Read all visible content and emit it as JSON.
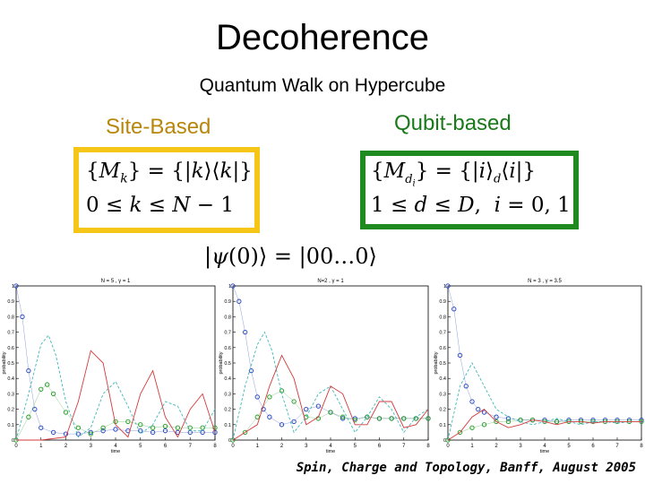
{
  "slide": {
    "title": "Decoherence",
    "subtitle": "Quantum Walk on Hypercube",
    "site_label": "Site-Based",
    "qubit_label": "Qubit-based",
    "site_formula_line1": "{M_k} = {|k⟩⟨k|}",
    "site_formula_line2": "0 ≤ k ≤ N − 1",
    "qubit_formula_line1": "{M_{d_i}} = {|i⟩_d⟨i|}",
    "qubit_formula_line2": "1 ≤ d ≤ D,  i = 0, 1",
    "initial_state": "|ψ(0)⟩ = |00…0⟩",
    "footer": "Spin, Charge and Topology, Banff, August 2005",
    "colors": {
      "site_box": "#f5c518",
      "qubit_box": "#1f8a1f",
      "site_label": "#b8860b",
      "qubit_label": "#1a7a1a"
    }
  },
  "chart_data": [
    {
      "type": "line",
      "title": "N = 5 , γ = 1",
      "xlabel": "time",
      "ylabel": "probability",
      "xlim": [
        0,
        8
      ],
      "ylim": [
        0,
        1
      ],
      "x_ticks": [
        "0",
        "1",
        "2",
        "3",
        "4",
        "5",
        "6",
        "7",
        "8"
      ],
      "y_ticks": [
        "0",
        "0.1",
        "0.2",
        "0.3",
        "0.4",
        "0.5",
        "0.6",
        "0.7",
        "0.8",
        "0.9",
        "1"
      ],
      "series": [
        {
          "color": "#1f3fbf",
          "style": "circles",
          "x": [
            0,
            0.25,
            0.5,
            0.75,
            1,
            1.5,
            2,
            2.5,
            3,
            3.5,
            4,
            4.5,
            5,
            5.5,
            6,
            6.5,
            7,
            7.5,
            8
          ],
          "y": [
            1,
            0.8,
            0.45,
            0.2,
            0.08,
            0.05,
            0.04,
            0.04,
            0.05,
            0.06,
            0.07,
            0.06,
            0.06,
            0.05,
            0.06,
            0.05,
            0.05,
            0.05,
            0.05
          ]
        },
        {
          "color": "#1f9a1f",
          "style": "circles",
          "x": [
            0,
            0.5,
            1,
            1.25,
            1.5,
            2,
            2.5,
            3,
            3.5,
            4,
            4.5,
            5,
            5.5,
            6,
            6.5,
            7,
            7.5,
            8
          ],
          "y": [
            0,
            0.15,
            0.33,
            0.36,
            0.3,
            0.18,
            0.08,
            0.04,
            0.08,
            0.12,
            0.12,
            0.1,
            0.08,
            0.09,
            0.08,
            0.08,
            0.08,
            0.08
          ]
        },
        {
          "color": "#3fb8b8",
          "style": "dash",
          "x": [
            0,
            0.5,
            1,
            1.3,
            1.6,
            2,
            2.5,
            3,
            3.5,
            4,
            4.5,
            5,
            5.5,
            6,
            6.5,
            7,
            7.5,
            8
          ],
          "y": [
            0,
            0.3,
            0.62,
            0.68,
            0.55,
            0.25,
            0.02,
            0.08,
            0.3,
            0.38,
            0.22,
            0.04,
            0.1,
            0.25,
            0.22,
            0.06,
            0.06,
            0.2
          ]
        },
        {
          "color": "#d43a3a",
          "style": "solid",
          "x": [
            0,
            1,
            2,
            2.5,
            3,
            3.5,
            4,
            4.5,
            5,
            5.5,
            6,
            6.5,
            7,
            7.5,
            8
          ],
          "y": [
            0,
            0,
            0.02,
            0.25,
            0.58,
            0.5,
            0.1,
            0.02,
            0.3,
            0.45,
            0.15,
            0.02,
            0.2,
            0.3,
            0.05
          ]
        }
      ]
    },
    {
      "type": "line",
      "title": "N=2 , γ = 1",
      "xlabel": "time",
      "ylabel": "probability",
      "xlim": [
        0,
        8
      ],
      "ylim": [
        0,
        1
      ],
      "x_ticks": [
        "0",
        "1",
        "2",
        "3",
        "4",
        "5",
        "6",
        "7",
        "8"
      ],
      "y_ticks": [
        "0",
        "0.1",
        "0.2",
        "0.3",
        "0.4",
        "0.5",
        "0.6",
        "0.7",
        "0.8",
        "0.9",
        "1"
      ],
      "series": [
        {
          "color": "#1f3fbf",
          "style": "circles",
          "x": [
            0,
            0.25,
            0.5,
            0.75,
            1,
            1.25,
            1.5,
            2,
            2.5,
            3,
            3.5,
            4,
            4.5,
            5,
            5.5,
            6,
            6.5,
            7,
            7.5,
            8
          ],
          "y": [
            1,
            0.9,
            0.7,
            0.45,
            0.28,
            0.2,
            0.15,
            0.1,
            0.12,
            0.2,
            0.22,
            0.18,
            0.14,
            0.14,
            0.15,
            0.14,
            0.14,
            0.14,
            0.14,
            0.14
          ]
        },
        {
          "color": "#1f9a1f",
          "style": "circles",
          "x": [
            0,
            0.5,
            1,
            1.5,
            2,
            2.5,
            3,
            3.5,
            4,
            4.5,
            5,
            5.5,
            6,
            6.5,
            7,
            7.5,
            8
          ],
          "y": [
            0,
            0.05,
            0.15,
            0.28,
            0.32,
            0.25,
            0.15,
            0.14,
            0.18,
            0.15,
            0.13,
            0.15,
            0.14,
            0.14,
            0.14,
            0.14,
            0.14
          ]
        },
        {
          "color": "#3fb8b8",
          "style": "dash",
          "x": [
            0,
            0.5,
            1,
            1.3,
            1.6,
            2,
            2.5,
            3,
            3.5,
            4,
            4.5,
            5,
            5.5,
            6,
            6.5,
            7,
            7.5,
            8
          ],
          "y": [
            0,
            0.35,
            0.62,
            0.7,
            0.58,
            0.3,
            0.05,
            0.15,
            0.3,
            0.35,
            0.2,
            0.05,
            0.15,
            0.28,
            0.2,
            0.05,
            0.15,
            0.2
          ]
        },
        {
          "color": "#d43a3a",
          "style": "solid",
          "x": [
            0,
            0.5,
            1,
            1.5,
            2,
            2.5,
            3,
            3.5,
            4,
            4.5,
            5,
            5.5,
            6,
            6.5,
            7,
            7.5,
            8
          ],
          "y": [
            0,
            0.05,
            0.1,
            0.35,
            0.55,
            0.4,
            0.1,
            0.15,
            0.35,
            0.3,
            0.1,
            0.1,
            0.25,
            0.25,
            0.08,
            0.1,
            0.2
          ]
        }
      ]
    },
    {
      "type": "line",
      "title": "N = 3 , γ = 3.5",
      "xlabel": "time",
      "ylabel": "probability",
      "xlim": [
        0,
        8
      ],
      "ylim": [
        0,
        1
      ],
      "x_ticks": [
        "0",
        "1",
        "2",
        "3",
        "4",
        "5",
        "6",
        "7",
        "8"
      ],
      "y_ticks": [
        "0",
        "0.1",
        "0.2",
        "0.3",
        "0.4",
        "0.5",
        "0.6",
        "0.7",
        "0.8",
        "0.9",
        "1"
      ],
      "series": [
        {
          "color": "#1f3fbf",
          "style": "circles",
          "x": [
            0,
            0.25,
            0.5,
            0.75,
            1,
            1.25,
            1.5,
            2,
            2.5,
            3,
            3.5,
            4,
            4.5,
            5,
            5.5,
            6,
            6.5,
            7,
            7.5,
            8
          ],
          "y": [
            1,
            0.85,
            0.55,
            0.35,
            0.25,
            0.2,
            0.18,
            0.15,
            0.14,
            0.13,
            0.13,
            0.13,
            0.12,
            0.13,
            0.13,
            0.13,
            0.13,
            0.13,
            0.13,
            0.13
          ]
        },
        {
          "color": "#1f9a1f",
          "style": "circles",
          "x": [
            0,
            0.5,
            1,
            1.5,
            2,
            2.5,
            3,
            3.5,
            4,
            4.5,
            5,
            5.5,
            6,
            6.5,
            7,
            7.5,
            8
          ],
          "y": [
            0,
            0.05,
            0.08,
            0.1,
            0.12,
            0.12,
            0.13,
            0.13,
            0.12,
            0.12,
            0.12,
            0.12,
            0.12,
            0.12,
            0.12,
            0.12,
            0.12
          ]
        },
        {
          "color": "#3fb8b8",
          "style": "dash",
          "x": [
            0,
            0.5,
            1,
            1.5,
            2,
            2.5,
            3,
            3.5,
            4,
            4.5,
            5,
            5.5,
            6,
            6.5,
            7,
            7.5,
            8
          ],
          "y": [
            0,
            0.35,
            0.5,
            0.35,
            0.2,
            0.15,
            0.12,
            0.1,
            0.12,
            0.14,
            0.12,
            0.1,
            0.12,
            0.12,
            0.11,
            0.12,
            0.12
          ]
        },
        {
          "color": "#d43a3a",
          "style": "solid",
          "x": [
            0,
            0.5,
            1,
            1.5,
            2,
            2.5,
            3,
            3.5,
            4,
            4.5,
            5,
            5.5,
            6,
            6.5,
            7,
            7.5,
            8
          ],
          "y": [
            0,
            0.05,
            0.15,
            0.2,
            0.12,
            0.08,
            0.1,
            0.13,
            0.12,
            0.1,
            0.12,
            0.12,
            0.11,
            0.12,
            0.12,
            0.12,
            0.12
          ]
        }
      ]
    }
  ]
}
